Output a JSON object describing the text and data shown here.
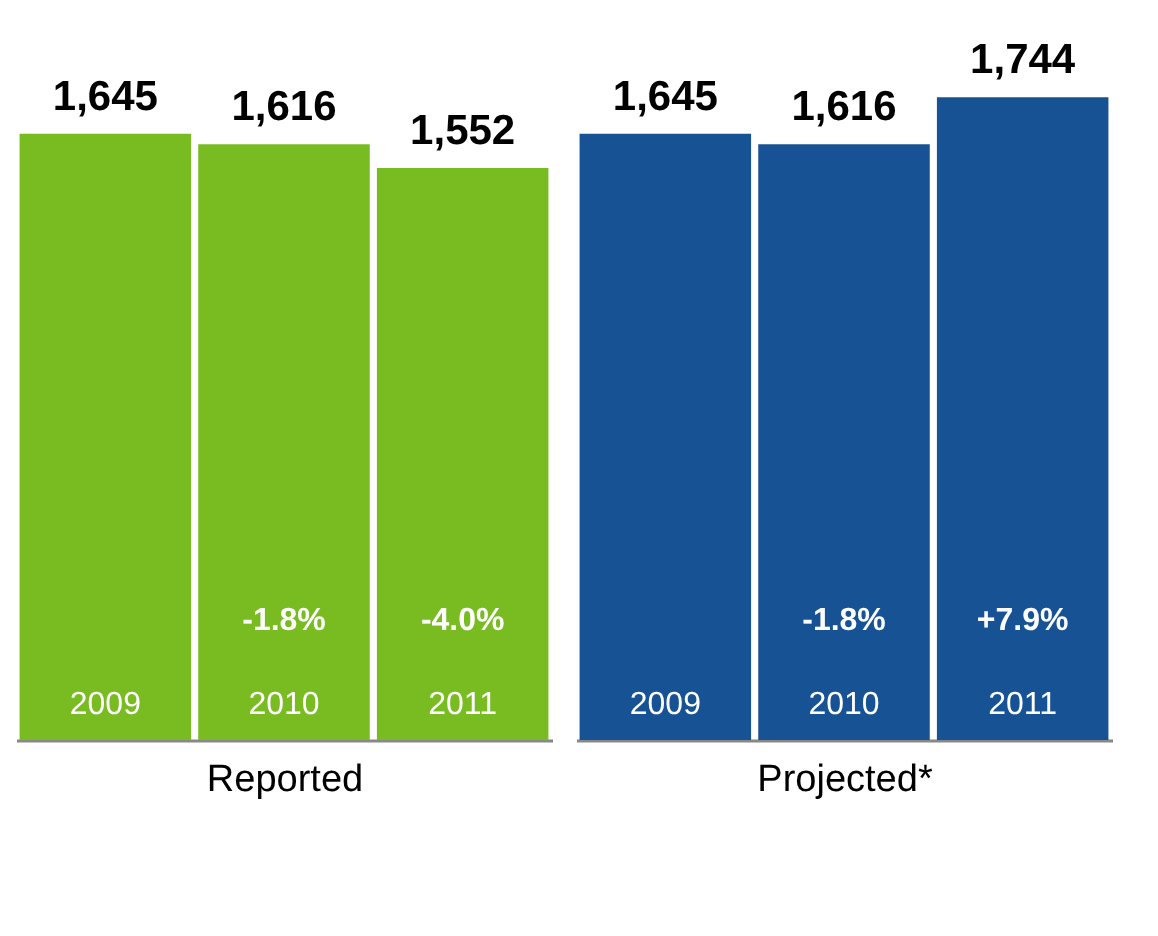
{
  "chart_data": [
    {
      "type": "bar",
      "xlabel": "Reported",
      "categories": [
        "2009",
        "2010",
        "2011"
      ],
      "values": [
        1645,
        1616,
        1552
      ],
      "color": "#78bc22",
      "value_labels": [
        "1,645",
        "1,616",
        "1,552"
      ],
      "annotations": [
        "-1.8%",
        "-4.0%"
      ]
    },
    {
      "type": "bar",
      "xlabel": "Projected*",
      "categories": [
        "2009",
        "2010",
        "2011"
      ],
      "values": [
        1645,
        1616,
        1744
      ],
      "color": "#175394",
      "value_labels": [
        "1,645",
        "1,616",
        "1,744"
      ],
      "annotations": [
        "-1.8%",
        "+7.9%"
      ]
    }
  ]
}
